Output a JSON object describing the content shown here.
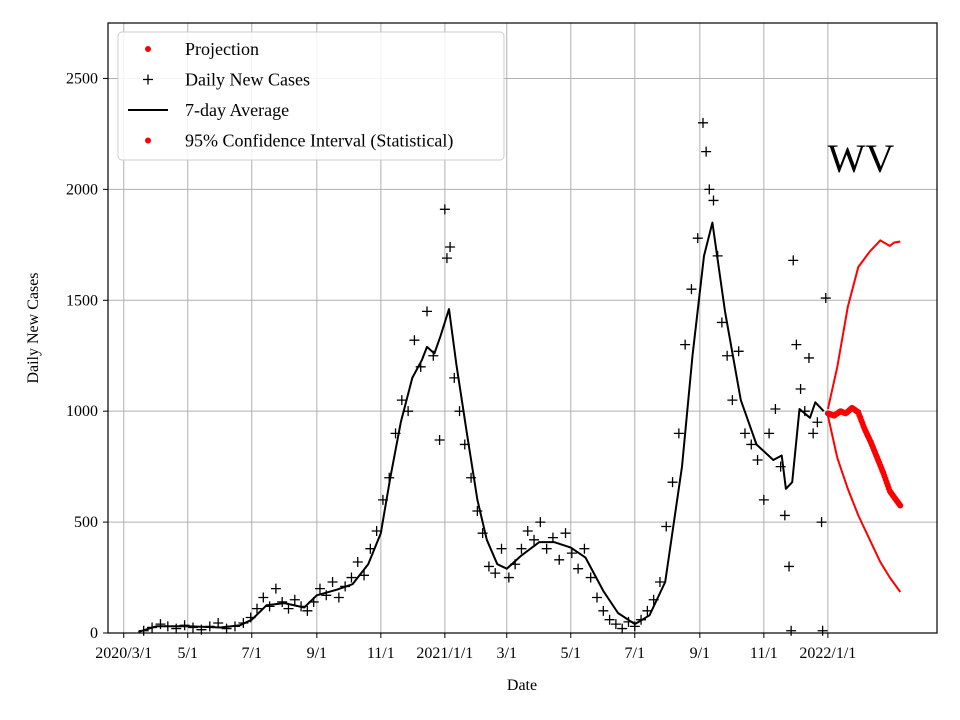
{
  "chart_data": {
    "type": "scatter",
    "title": "WV",
    "xlabel": "Date",
    "ylabel": "Daily New Cases",
    "xlim": [
      "2020-02-15",
      "2022-04-15"
    ],
    "ylim": [
      0,
      2750
    ],
    "x_ticks": [
      {
        "date": "2020-03-01",
        "label": "2020/3/1"
      },
      {
        "date": "2020-05-01",
        "label": "5/1"
      },
      {
        "date": "2020-07-01",
        "label": "7/1"
      },
      {
        "date": "2020-09-01",
        "label": "9/1"
      },
      {
        "date": "2020-11-01",
        "label": "11/1"
      },
      {
        "date": "2021-01-01",
        "label": "2021/1/1"
      },
      {
        "date": "2021-03-01",
        "label": "3/1"
      },
      {
        "date": "2021-05-01",
        "label": "5/1"
      },
      {
        "date": "2021-07-01",
        "label": "7/1"
      },
      {
        "date": "2021-09-01",
        "label": "9/1"
      },
      {
        "date": "2021-11-01",
        "label": "11/1"
      },
      {
        "date": "2022-01-01",
        "label": "2022/1/1"
      }
    ],
    "y_ticks": [
      0,
      500,
      1000,
      1500,
      2000,
      2500
    ],
    "grid": true,
    "legend_position": "top-left",
    "legend": [
      {
        "label": "Projection",
        "marker": "dot",
        "color": "#ff0000"
      },
      {
        "label": "Daily New Cases",
        "marker": "plus",
        "color": "#000000"
      },
      {
        "label": "7-day Average",
        "marker": "line",
        "color": "#000000"
      },
      {
        "label": "95% Confidence Interval (Statistical)",
        "marker": "dot",
        "color": "#ff0000"
      }
    ],
    "series": [
      {
        "name": "Daily New Cases",
        "type": "scatter",
        "marker": "plus",
        "color": "#000000",
        "points": [
          [
            "2020-03-20",
            10
          ],
          [
            "2020-03-28",
            25
          ],
          [
            "2020-04-05",
            40
          ],
          [
            "2020-04-12",
            30
          ],
          [
            "2020-04-20",
            20
          ],
          [
            "2020-04-28",
            35
          ],
          [
            "2020-05-06",
            25
          ],
          [
            "2020-05-14",
            15
          ],
          [
            "2020-05-22",
            30
          ],
          [
            "2020-05-30",
            45
          ],
          [
            "2020-06-07",
            20
          ],
          [
            "2020-06-15",
            30
          ],
          [
            "2020-06-23",
            45
          ],
          [
            "2020-06-30",
            70
          ],
          [
            "2020-07-06",
            110
          ],
          [
            "2020-07-12",
            160
          ],
          [
            "2020-07-18",
            120
          ],
          [
            "2020-07-24",
            200
          ],
          [
            "2020-07-30",
            140
          ],
          [
            "2020-08-05",
            110
          ],
          [
            "2020-08-11",
            150
          ],
          [
            "2020-08-17",
            120
          ],
          [
            "2020-08-23",
            100
          ],
          [
            "2020-08-29",
            140
          ],
          [
            "2020-09-04",
            200
          ],
          [
            "2020-09-10",
            170
          ],
          [
            "2020-09-16",
            230
          ],
          [
            "2020-09-22",
            160
          ],
          [
            "2020-09-28",
            210
          ],
          [
            "2020-10-04",
            250
          ],
          [
            "2020-10-10",
            320
          ],
          [
            "2020-10-16",
            260
          ],
          [
            "2020-10-22",
            380
          ],
          [
            "2020-10-28",
            460
          ],
          [
            "2020-11-03",
            600
          ],
          [
            "2020-11-09",
            700
          ],
          [
            "2020-11-15",
            900
          ],
          [
            "2020-11-21",
            1050
          ],
          [
            "2020-11-27",
            1000
          ],
          [
            "2020-12-03",
            1320
          ],
          [
            "2020-12-09",
            1200
          ],
          [
            "2020-12-15",
            1450
          ],
          [
            "2020-12-21",
            1250
          ],
          [
            "2020-12-27",
            870
          ],
          [
            "2021-01-01",
            1910
          ],
          [
            "2021-01-03",
            1690
          ],
          [
            "2021-01-06",
            1740
          ],
          [
            "2021-01-10",
            1150
          ],
          [
            "2021-01-15",
            1000
          ],
          [
            "2021-01-20",
            850
          ],
          [
            "2021-01-26",
            700
          ],
          [
            "2021-02-01",
            550
          ],
          [
            "2021-02-06",
            450
          ],
          [
            "2021-02-12",
            300
          ],
          [
            "2021-02-18",
            270
          ],
          [
            "2021-02-24",
            380
          ],
          [
            "2021-03-03",
            250
          ],
          [
            "2021-03-09",
            310
          ],
          [
            "2021-03-15",
            380
          ],
          [
            "2021-03-21",
            460
          ],
          [
            "2021-03-27",
            420
          ],
          [
            "2021-04-02",
            500
          ],
          [
            "2021-04-08",
            380
          ],
          [
            "2021-04-14",
            430
          ],
          [
            "2021-04-20",
            330
          ],
          [
            "2021-04-26",
            450
          ],
          [
            "2021-05-02",
            360
          ],
          [
            "2021-05-08",
            290
          ],
          [
            "2021-05-14",
            380
          ],
          [
            "2021-05-20",
            250
          ],
          [
            "2021-05-26",
            160
          ],
          [
            "2021-06-01",
            100
          ],
          [
            "2021-06-07",
            60
          ],
          [
            "2021-06-13",
            40
          ],
          [
            "2021-06-19",
            20
          ],
          [
            "2021-06-25",
            50
          ],
          [
            "2021-07-01",
            30
          ],
          [
            "2021-07-07",
            60
          ],
          [
            "2021-07-13",
            100
          ],
          [
            "2021-07-19",
            150
          ],
          [
            "2021-07-25",
            230
          ],
          [
            "2021-07-31",
            480
          ],
          [
            "2021-08-06",
            680
          ],
          [
            "2021-08-12",
            900
          ],
          [
            "2021-08-18",
            1300
          ],
          [
            "2021-08-24",
            1550
          ],
          [
            "2021-08-30",
            1780
          ],
          [
            "2021-09-04",
            2300
          ],
          [
            "2021-09-07",
            2170
          ],
          [
            "2021-09-10",
            2000
          ],
          [
            "2021-09-14",
            1950
          ],
          [
            "2021-09-18",
            1700
          ],
          [
            "2021-09-22",
            1400
          ],
          [
            "2021-09-27",
            1250
          ],
          [
            "2021-10-02",
            1050
          ],
          [
            "2021-10-08",
            1270
          ],
          [
            "2021-10-14",
            900
          ],
          [
            "2021-10-20",
            850
          ],
          [
            "2021-10-26",
            780
          ],
          [
            "2021-11-01",
            600
          ],
          [
            "2021-11-06",
            900
          ],
          [
            "2021-11-12",
            1010
          ],
          [
            "2021-11-17",
            750
          ],
          [
            "2021-11-21",
            530
          ],
          [
            "2021-11-25",
            300
          ],
          [
            "2021-11-29",
            1680
          ],
          [
            "2021-12-02",
            1300
          ],
          [
            "2021-12-06",
            1100
          ],
          [
            "2021-12-10",
            1000
          ],
          [
            "2021-12-14",
            1240
          ],
          [
            "2021-12-18",
            900
          ],
          [
            "2021-12-22",
            950
          ],
          [
            "2021-12-26",
            500
          ],
          [
            "2021-12-30",
            1510
          ],
          [
            "2021-11-27",
            10
          ],
          [
            "2021-12-27",
            10
          ]
        ]
      },
      {
        "name": "7-day Average",
        "type": "line",
        "color": "#000000",
        "points": [
          [
            "2020-03-15",
            5
          ],
          [
            "2020-04-01",
            30
          ],
          [
            "2020-05-01",
            30
          ],
          [
            "2020-06-01",
            25
          ],
          [
            "2020-06-20",
            35
          ],
          [
            "2020-07-01",
            60
          ],
          [
            "2020-07-15",
            125
          ],
          [
            "2020-08-01",
            135
          ],
          [
            "2020-08-20",
            115
          ],
          [
            "2020-09-01",
            170
          ],
          [
            "2020-09-20",
            195
          ],
          [
            "2020-10-05",
            220
          ],
          [
            "2020-10-20",
            310
          ],
          [
            "2020-11-01",
            450
          ],
          [
            "2020-11-10",
            700
          ],
          [
            "2020-11-20",
            950
          ],
          [
            "2020-12-01",
            1150
          ],
          [
            "2020-12-10",
            1230
          ],
          [
            "2020-12-15",
            1290
          ],
          [
            "2020-12-22",
            1260
          ],
          [
            "2020-12-28",
            1340
          ],
          [
            "2021-01-05",
            1460
          ],
          [
            "2021-01-12",
            1210
          ],
          [
            "2021-01-22",
            900
          ],
          [
            "2021-02-01",
            600
          ],
          [
            "2021-02-10",
            420
          ],
          [
            "2021-02-20",
            310
          ],
          [
            "2021-03-01",
            290
          ],
          [
            "2021-03-15",
            350
          ],
          [
            "2021-04-01",
            410
          ],
          [
            "2021-04-15",
            410
          ],
          [
            "2021-05-01",
            385
          ],
          [
            "2021-05-15",
            340
          ],
          [
            "2021-06-01",
            190
          ],
          [
            "2021-06-15",
            90
          ],
          [
            "2021-07-01",
            40
          ],
          [
            "2021-07-15",
            80
          ],
          [
            "2021-07-30",
            230
          ],
          [
            "2021-08-15",
            750
          ],
          [
            "2021-08-25",
            1250
          ],
          [
            "2021-09-05",
            1700
          ],
          [
            "2021-09-13",
            1850
          ],
          [
            "2021-09-25",
            1450
          ],
          [
            "2021-10-10",
            1050
          ],
          [
            "2021-10-25",
            850
          ],
          [
            "2021-11-10",
            780
          ],
          [
            "2021-11-18",
            800
          ],
          [
            "2021-11-22",
            650
          ],
          [
            "2021-11-28",
            680
          ],
          [
            "2021-12-05",
            1010
          ],
          [
            "2021-12-15",
            970
          ],
          [
            "2021-12-20",
            1040
          ],
          [
            "2021-12-28",
            1000
          ]
        ]
      },
      {
        "name": "Projection",
        "type": "dots",
        "color": "#ff0000",
        "points": [
          [
            "2022-01-01",
            990
          ],
          [
            "2022-01-07",
            980
          ],
          [
            "2022-01-13",
            1000
          ],
          [
            "2022-01-18",
            990
          ],
          [
            "2022-01-24",
            1015
          ],
          [
            "2022-01-30",
            995
          ],
          [
            "2022-02-05",
            920
          ],
          [
            "2022-02-11",
            860
          ],
          [
            "2022-02-17",
            790
          ],
          [
            "2022-02-23",
            720
          ],
          [
            "2022-03-01",
            640
          ],
          [
            "2022-03-07",
            600
          ],
          [
            "2022-03-11",
            575
          ]
        ]
      },
      {
        "name": "95% Confidence Interval (Statistical)",
        "type": "band",
        "color": "#ff0000",
        "upper": [
          [
            "2022-01-01",
            1010
          ],
          [
            "2022-01-10",
            1200
          ],
          [
            "2022-01-20",
            1470
          ],
          [
            "2022-01-30",
            1650
          ],
          [
            "2022-02-10",
            1720
          ],
          [
            "2022-02-20",
            1770
          ],
          [
            "2022-03-01",
            1745
          ],
          [
            "2022-03-05",
            1760
          ],
          [
            "2022-03-11",
            1765
          ]
        ],
        "lower": [
          [
            "2022-01-01",
            980
          ],
          [
            "2022-01-10",
            790
          ],
          [
            "2022-01-20",
            650
          ],
          [
            "2022-01-30",
            530
          ],
          [
            "2022-02-10",
            420
          ],
          [
            "2022-02-20",
            320
          ],
          [
            "2022-03-01",
            250
          ],
          [
            "2022-03-11",
            185
          ]
        ]
      }
    ]
  }
}
